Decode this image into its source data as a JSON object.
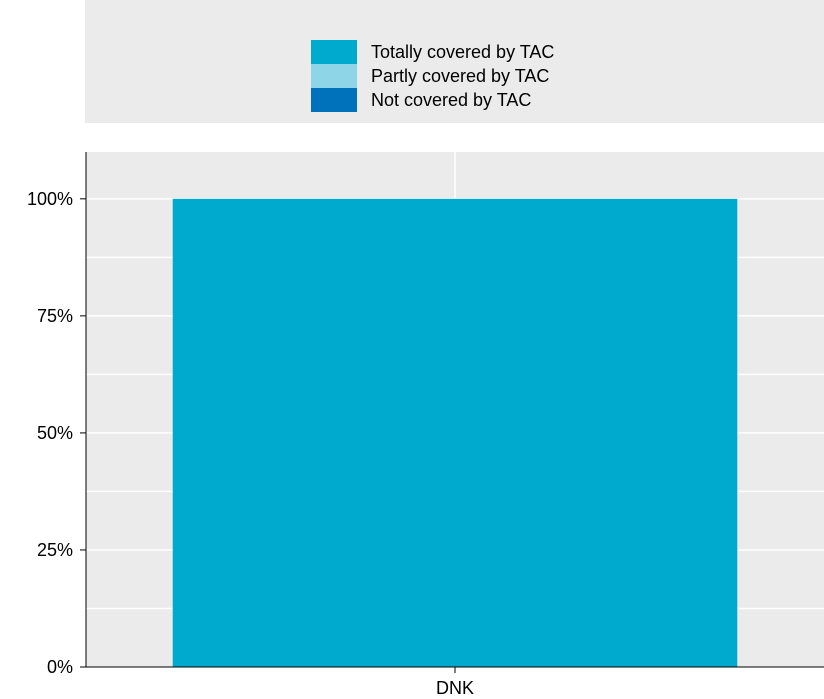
{
  "chart_data": {
    "type": "bar",
    "stacked": true,
    "categories": [
      "DNK"
    ],
    "series": [
      {
        "name": "Totally covered by TAC",
        "values": [
          100
        ],
        "color": "#00a9ce"
      },
      {
        "name": "Partly covered by TAC",
        "values": [
          0
        ],
        "color": "#8fd5e8"
      },
      {
        "name": "Not covered by TAC",
        "values": [
          0
        ],
        "color": "#0072bc"
      }
    ],
    "y_ticks": [
      0,
      25,
      50,
      75,
      100
    ],
    "y_tick_labels": [
      "0%",
      "25%",
      "50%",
      "75%",
      "100%"
    ],
    "ylim": [
      0,
      110
    ],
    "grid": true,
    "legend_position": "top"
  },
  "colors": {
    "panel_background": "#ebebeb",
    "grid": "#ffffff",
    "axis": "#000000"
  }
}
